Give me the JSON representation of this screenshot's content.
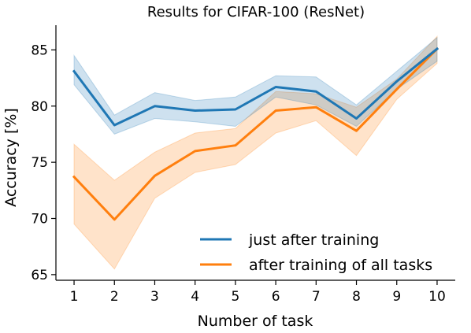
{
  "chart_data": {
    "type": "line",
    "title": "Results for CIFAR-100 (ResNet)",
    "xlabel": "Number of task",
    "ylabel": "Accuracy [%]",
    "x": [
      1,
      2,
      3,
      4,
      5,
      6,
      7,
      8,
      9,
      10
    ],
    "xticks": [
      "1",
      "2",
      "3",
      "4",
      "5",
      "6",
      "7",
      "8",
      "9",
      "10"
    ],
    "yticks": [
      "65",
      "70",
      "75",
      "80",
      "85"
    ],
    "ylim": [
      64.5,
      87.2
    ],
    "xlim": [
      0.55,
      10.45
    ],
    "grid": false,
    "legend_position": "lower-right",
    "series": [
      {
        "name": "just after training",
        "color": "#1f77b4",
        "values": [
          83.1,
          78.3,
          80.0,
          79.6,
          79.7,
          81.7,
          81.3,
          78.9,
          82.2,
          85.1
        ],
        "lower": [
          81.9,
          77.5,
          78.9,
          78.6,
          78.2,
          80.8,
          80.1,
          78.2,
          81.5,
          84.0
        ],
        "upper": [
          84.5,
          79.2,
          81.2,
          80.5,
          80.8,
          82.7,
          82.6,
          80.1,
          83.1,
          86.1
        ]
      },
      {
        "name": "after training of all tasks",
        "color": "#ff7f0e",
        "values": [
          73.7,
          69.9,
          73.8,
          76.0,
          76.5,
          79.6,
          79.9,
          77.8,
          81.5,
          85.1
        ],
        "lower": [
          69.5,
          65.5,
          71.8,
          74.1,
          74.8,
          77.6,
          78.7,
          75.6,
          80.6,
          83.8
        ],
        "upper": [
          76.6,
          73.4,
          75.9,
          77.6,
          78.0,
          81.3,
          81.1,
          79.9,
          82.4,
          86.2
        ]
      }
    ]
  }
}
